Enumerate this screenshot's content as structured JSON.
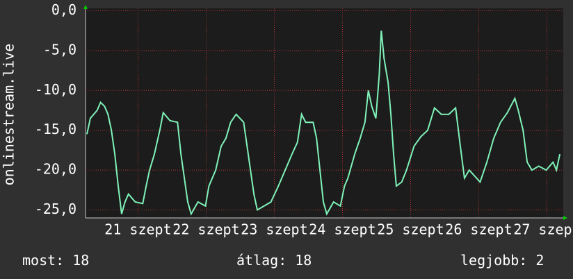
{
  "chart_data": {
    "type": "line",
    "y_label": "onlinestream.live",
    "x": [
      20.25,
      20.3,
      20.4,
      20.45,
      20.51,
      20.56,
      20.61,
      20.66,
      20.71,
      20.76,
      20.81,
      20.86,
      20.96,
      21.07,
      21.12,
      21.17,
      21.24,
      21.32,
      21.37,
      21.47,
      21.58,
      21.63,
      21.68,
      21.73,
      21.78,
      21.88,
      21.99,
      22.04,
      22.14,
      22.22,
      22.29,
      22.36,
      22.44,
      22.55,
      22.6,
      22.65,
      22.7,
      22.75,
      22.85,
      22.95,
      23.06,
      23.16,
      23.26,
      23.34,
      23.4,
      23.46,
      23.57,
      23.62,
      23.67,
      23.72,
      23.77,
      23.87,
      23.97,
      24.03,
      24.08,
      24.18,
      24.26,
      24.33,
      24.38,
      24.43,
      24.49,
      24.54,
      24.57,
      24.61,
      24.67,
      24.71,
      24.75,
      24.79,
      24.87,
      24.94,
      25.05,
      25.15,
      25.25,
      25.35,
      25.45,
      25.56,
      25.66,
      25.73,
      25.79,
      25.86,
      26.02,
      26.12,
      26.22,
      26.32,
      26.42,
      26.53,
      26.58,
      26.65,
      26.71,
      26.78,
      26.88,
      26.99,
      27.09,
      27.14,
      27.19
    ],
    "series": [
      {
        "color": "#7ff2b9",
        "values": [
          -15.5,
          -13.5,
          -12.5,
          -11.5,
          -12,
          -13,
          -15,
          -18,
          -22,
          -25.5,
          -24,
          -23,
          -24,
          -24.2,
          -22,
          -20,
          -18,
          -15,
          -12.8,
          -13.8,
          -14,
          -18,
          -21,
          -24,
          -25.5,
          -24,
          -24.5,
          -22,
          -20,
          -17,
          -16,
          -14,
          -13,
          -14,
          -17,
          -20,
          -23,
          -25,
          -24.5,
          -24,
          -22,
          -20,
          -18,
          -16.5,
          -13,
          -14,
          -14,
          -16,
          -20,
          -24,
          -25.5,
          -24,
          -24.5,
          -22,
          -21,
          -18,
          -16,
          -14,
          -10,
          -12,
          -13.5,
          -8,
          -2.5,
          -6,
          -9,
          -13,
          -18,
          -22,
          -21.5,
          -20,
          -17,
          -15.8,
          -15,
          -12.2,
          -13,
          -13,
          -12.2,
          -17,
          -21,
          -20,
          -21.5,
          -19,
          -16,
          -14,
          -12.8,
          -11,
          -12.5,
          -15,
          -19,
          -20,
          -19.5,
          -20,
          -19,
          -20,
          -18
        ]
      }
    ],
    "xlim": [
      20.23,
      27.24
    ],
    "xticks": [
      {
        "value": 21,
        "label": "21 szept"
      },
      {
        "value": 22,
        "label": "22 szept"
      },
      {
        "value": 23,
        "label": "23 szept"
      },
      {
        "value": 24,
        "label": "24 szept"
      },
      {
        "value": 25,
        "label": "25 szept"
      },
      {
        "value": 26,
        "label": "26 szept"
      },
      {
        "value": 27,
        "label": "27 szept"
      }
    ],
    "ylim": [
      -26,
      0.3
    ],
    "yticks": [
      {
        "value": 0,
        "label": "0,0"
      },
      {
        "value": -5,
        "label": "-5,0"
      },
      {
        "value": -10,
        "label": "-10,0"
      },
      {
        "value": -15,
        "label": "-15,0"
      },
      {
        "value": -20,
        "label": "-20,0"
      },
      {
        "value": -25,
        "label": "-25,0"
      }
    ],
    "grid": true,
    "footer": [
      {
        "label": "most:",
        "value": 18
      },
      {
        "label": "átlag:",
        "value": 18
      },
      {
        "label": "legjobb:",
        "value": 2
      }
    ]
  }
}
